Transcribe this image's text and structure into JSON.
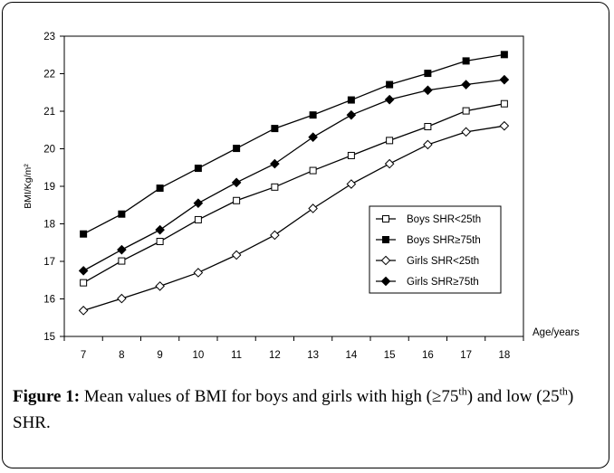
{
  "chart_data": {
    "type": "line",
    "xlabel": "Age/years",
    "ylabel": "BMI/Kg/m²",
    "x": [
      7,
      8,
      9,
      10,
      11,
      12,
      13,
      14,
      15,
      16,
      17,
      18
    ],
    "ylim": [
      15,
      23
    ],
    "yticks": [
      15,
      16,
      17,
      18,
      19,
      20,
      21,
      22,
      23
    ],
    "grid": false,
    "legend_position": "bottom-right",
    "series": [
      {
        "name": "Boys SHR<25th",
        "marker": "open-square",
        "values": [
          16.43,
          17.01,
          17.53,
          18.11,
          18.62,
          18.98,
          19.42,
          19.82,
          20.22,
          20.59,
          21.01,
          21.2
        ]
      },
      {
        "name": "Boys SHR≥75th",
        "marker": "filled-square",
        "values": [
          17.73,
          18.26,
          18.95,
          19.48,
          20.01,
          20.54,
          20.9,
          21.3,
          21.71,
          22.01,
          22.34,
          22.51
        ]
      },
      {
        "name": "Girls SHR<25th",
        "marker": "open-diamond",
        "values": [
          15.69,
          16.01,
          16.34,
          16.7,
          17.17,
          17.7,
          18.41,
          19.06,
          19.6,
          20.11,
          20.45,
          20.61
        ]
      },
      {
        "name": "Girls SHR≥75th",
        "marker": "filled-diamond",
        "values": [
          16.75,
          17.31,
          17.84,
          18.55,
          19.1,
          19.6,
          20.31,
          20.9,
          21.31,
          21.56,
          21.71,
          21.84
        ]
      }
    ]
  },
  "caption": {
    "label": "Figure 1:",
    "text_1": " Mean values of BMI for boys and girls with high (≥75",
    "sup_1": "th",
    "text_2": ") and low (25",
    "sup_2": "th",
    "text_3": ") SHR."
  }
}
